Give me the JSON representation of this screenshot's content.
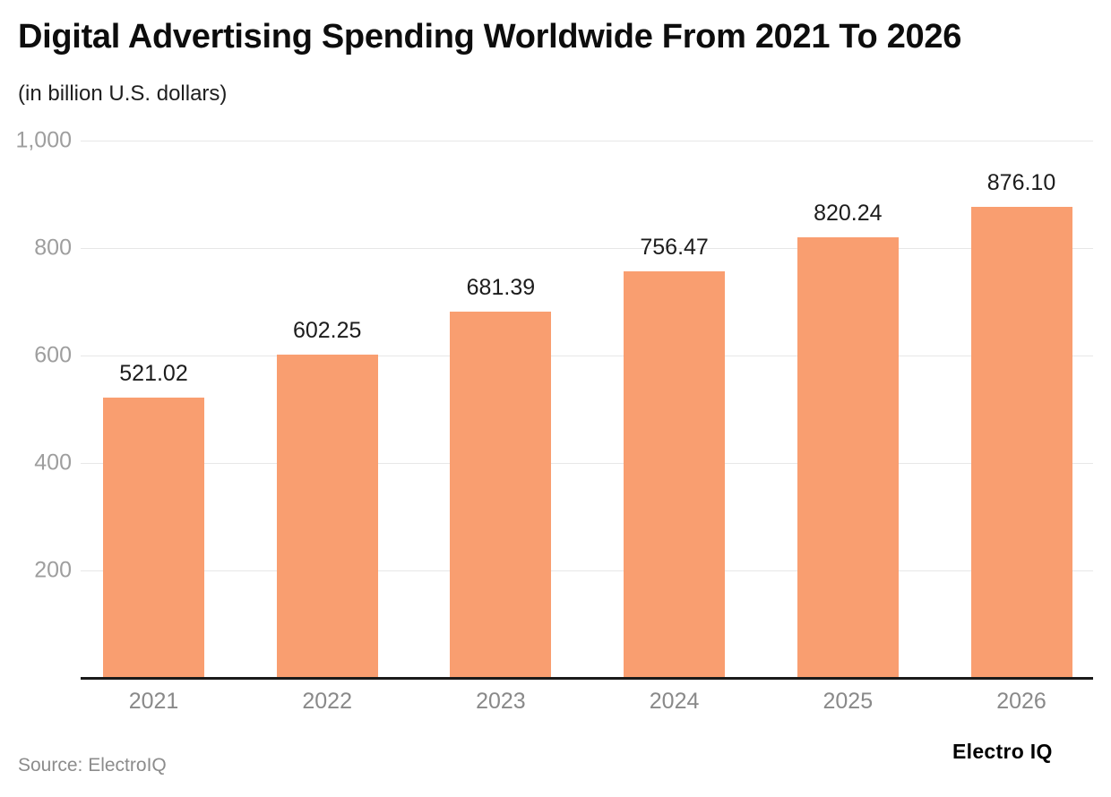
{
  "header": {
    "title": "Digital Advertising Spending Worldwide From 2021 To 2026",
    "subtitle": "(in billion U.S. dollars)"
  },
  "footer": {
    "source": "Source: ElectroIQ",
    "logo": "Electro IQ"
  },
  "colors": {
    "bar": "#F99E70",
    "grid": "#e7e7e7",
    "axis_line": "#1a1a1a",
    "y_tick_label": "#9e9e9e",
    "x_tick_label": "#898989",
    "value_label": "#1c1c1c"
  },
  "chart_data": {
    "type": "bar",
    "title": "Digital Advertising Spending Worldwide From 2021 To 2026",
    "subtitle": "(in billion U.S. dollars)",
    "categories": [
      "2021",
      "2022",
      "2023",
      "2024",
      "2025",
      "2026"
    ],
    "values": [
      521.02,
      602.25,
      681.39,
      756.47,
      820.24,
      876.1
    ],
    "value_labels": [
      "521.02",
      "602.25",
      "681.39",
      "756.47",
      "820.24",
      "876.10"
    ],
    "xlabel": "",
    "ylabel": "",
    "ylim": [
      0,
      1000
    ],
    "yticks": [
      200,
      400,
      600,
      800,
      1000
    ],
    "ytick_labels": [
      "200",
      "400",
      "600",
      "800",
      "1,000"
    ],
    "grid": true,
    "legend": false,
    "source": "Source: ElectroIQ",
    "bar_color": "#F99E70"
  }
}
